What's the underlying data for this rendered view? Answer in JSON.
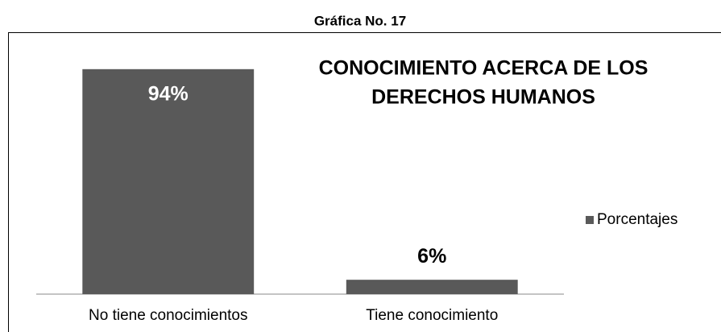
{
  "header": "Gráfica No. 17",
  "chart_data": {
    "type": "bar",
    "title": [
      "CONOCIMIENTO ACERCA DE LOS",
      "DERECHOS HUMANOS"
    ],
    "categories": [
      "No tiene conocimientos",
      "Tiene conocimiento"
    ],
    "series": [
      {
        "name": "Porcentajes",
        "color": "#595959",
        "values": [
          94,
          6
        ],
        "value_labels": [
          "94%",
          "6%"
        ]
      }
    ],
    "ylim": [
      0,
      100
    ],
    "legend": "right"
  }
}
